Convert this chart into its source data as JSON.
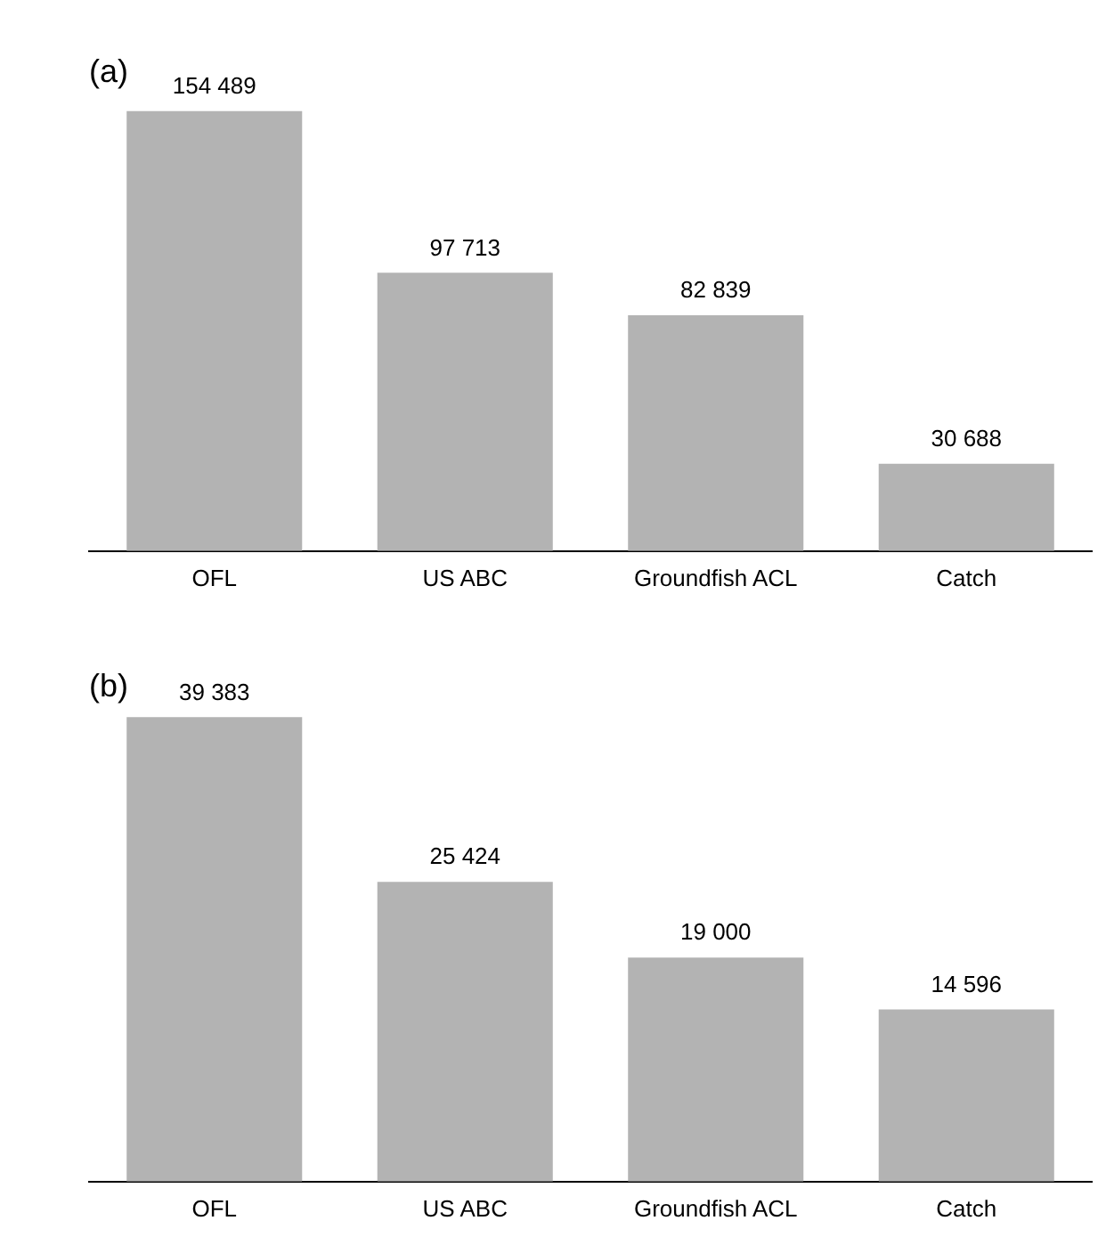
{
  "chart_data": [
    {
      "type": "bar",
      "title": "(a)",
      "categories": [
        "OFL",
        "US ABC",
        "Groundfish ACL",
        "Catch"
      ],
      "values": [
        154489,
        97713,
        82839,
        30688
      ],
      "value_labels": [
        "154 489",
        "97 713",
        "82 839",
        "30 688"
      ],
      "color": "#b3b3b3",
      "tick_labels": "x"
    },
    {
      "type": "bar",
      "title": "(b)",
      "categories": [
        "OFL",
        "US ABC",
        "Groundfish ACL",
        "Catch"
      ],
      "values": [
        39383,
        25424,
        19000,
        14596
      ],
      "value_labels": [
        "39 383",
        "25 424",
        "19 000",
        "14 596"
      ],
      "color": "#b3b3b3",
      "tick_labels": "x"
    }
  ]
}
